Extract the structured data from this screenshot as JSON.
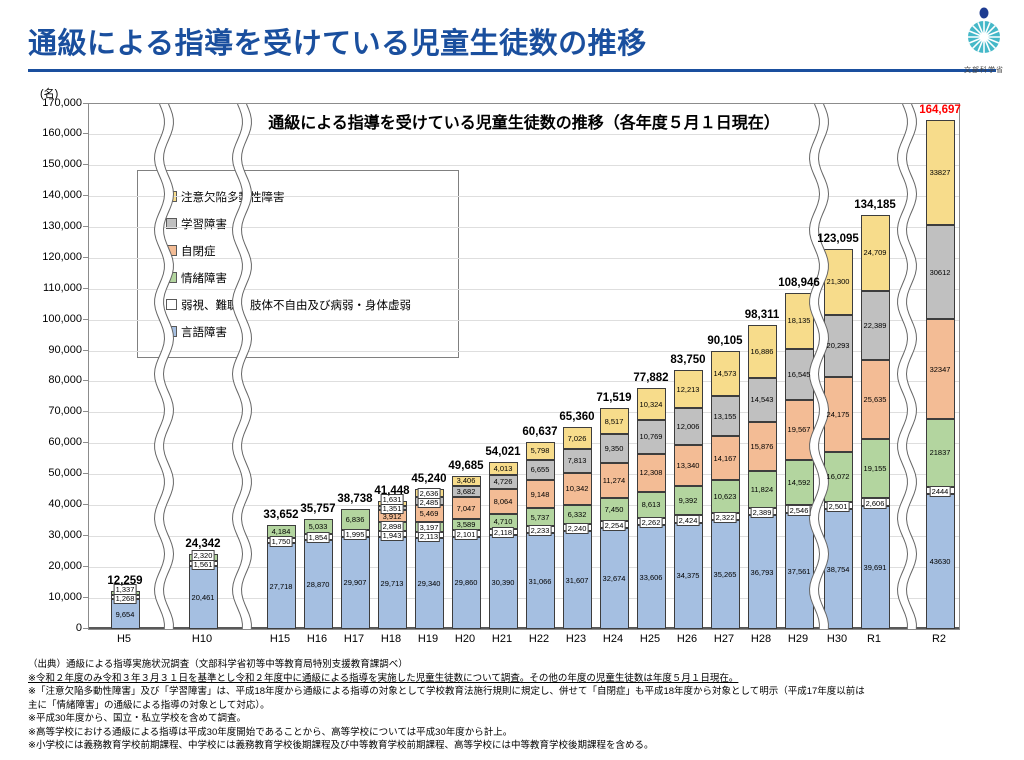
{
  "page": {
    "title": "通級による指導を受けている児童生徒数の推移",
    "logo_caption": "文部科学省",
    "logo_colors": {
      "circle": "#45B8C8",
      "dot": "#1E3C91"
    },
    "accent_color": "#1A4F9E"
  },
  "footnotes": [
    "（出典）通級による指導実施状況調査（文部科学省初等中等教育局特別支援教育課調べ）",
    "※令和２年度のみ令和３年３月３１日を基準とし令和２年度中に通級による指導を実施した児童生徒数について調査。その他の年度の児童生徒数は年度５月１日現在。",
    "※「注意欠陥多動性障害」及び「学習障害」は、平成18年度から通級による指導の対象として学校教育法施行規則に規定し、併せて「自閉症」も平成18年度から対象として明示（平成17年度以前は",
    "主に「情緒障害」の通級による指導の対象として対応）。",
    "※平成30年度から、国立・私立学校を含めて調査。",
    "※高等学校における通級による指導は平成30年度開始であることから、高等学校については平成30年度から計上。",
    "※小学校には義務教育学校前期課程、中学校には義務教育学校後期課程及び中等教育学校前期課程、高等学校には中等教育学校後期課程を含める。"
  ],
  "chart_data": {
    "type": "bar",
    "stacked": true,
    "title": "通級による指導を受けている児童生徒数の推移（各年度５月１日現在）",
    "unit_label": "(名)",
    "ylim": [
      0,
      170000
    ],
    "ytick_step": 10000,
    "grid": true,
    "legend_position": "inside-upper-left",
    "axis_breaks_after": [
      "H5",
      "H10",
      "H29",
      "R1"
    ],
    "categories": [
      "H5",
      "H10",
      "H15",
      "H16",
      "H17",
      "H18",
      "H19",
      "H20",
      "H21",
      "H22",
      "H23",
      "H24",
      "H25",
      "H26",
      "H27",
      "H28",
      "H29",
      "H30",
      "R1",
      "R2"
    ],
    "series": [
      {
        "name": "言語障害",
        "color": "#A5BFE1",
        "values": [
          9654,
          20461,
          27718,
          28870,
          29907,
          29713,
          29340,
          29860,
          30390,
          31066,
          31607,
          32674,
          33606,
          34375,
          35265,
          36793,
          37561,
          38754,
          39691,
          43630
        ],
        "labels": [
          "9,654",
          "20,461",
          "27,718",
          "28,870",
          "29,907",
          "29,713",
          "29,340",
          "29,860",
          "30,390",
          "31,066",
          "31,607",
          "32,674",
          "33,606",
          "34,375",
          "35,265",
          "36,793",
          "37,561",
          "38,754",
          "39,691",
          "43630"
        ]
      },
      {
        "name": "弱視、難聴、肢体不自由及び病弱・身体虚弱",
        "color": "#FFFFFF",
        "values": [
          1268,
          1561,
          1750,
          1854,
          1995,
          1943,
          2113,
          2101,
          2118,
          2233,
          2240,
          2254,
          2262,
          2424,
          2322,
          2389,
          2546,
          2501,
          2606,
          2444
        ],
        "labels": [
          "1,268",
          "1,561",
          "1,750",
          "1,854",
          "1,995",
          "1,943",
          "2,113",
          "2,101",
          "2,118",
          "2,233",
          "2,240",
          "2,254",
          "2,262",
          "2,424",
          "2,322",
          "2,389",
          "2,546",
          "2,501",
          "2,606",
          "2444"
        ]
      },
      {
        "name": "情緒障害",
        "color": "#B3D59F",
        "values": [
          1337,
          2320,
          4184,
          5033,
          6836,
          2898,
          3197,
          3589,
          4710,
          5737,
          6332,
          7450,
          8613,
          9392,
          10623,
          11824,
          14592,
          16072,
          19155,
          21837
        ],
        "labels": [
          "1,337",
          "2,320",
          "4,184",
          "5,033",
          "6,836",
          "2,898",
          "3,197",
          "3,589",
          "4,710",
          "5,737",
          "6,332",
          "7,450",
          "8,613",
          "9,392",
          "10,623",
          "11,824",
          "14,592",
          "16,072",
          "19,155",
          "21837"
        ]
      },
      {
        "name": "自閉症",
        "color": "#F3BC95",
        "values": [
          0,
          0,
          0,
          0,
          0,
          3912,
          5469,
          7047,
          8064,
          9148,
          10342,
          11274,
          12308,
          13340,
          14167,
          15876,
          19567,
          24175,
          25635,
          32347
        ],
        "labels": [
          "",
          "",
          "",
          "",
          "",
          "3,912",
          "5,469",
          "7,047",
          "8,064",
          "9,148",
          "10,342",
          "11,274",
          "12,308",
          "13,340",
          "14,167",
          "15,876",
          "19,567",
          "24,175",
          "25,635",
          "32347"
        ]
      },
      {
        "name": "学習障害",
        "color": "#C0C0C0",
        "values": [
          0,
          0,
          0,
          0,
          0,
          1351,
          2485,
          3682,
          4726,
          6655,
          7813,
          9350,
          10769,
          12006,
          13155,
          14543,
          16545,
          20293,
          22389,
          30612
        ],
        "labels": [
          "",
          "",
          "",
          "",
          "",
          "1,351",
          "2,485",
          "3,682",
          "4,726",
          "6,655",
          "7,813",
          "9,350",
          "10,769",
          "12,006",
          "13,155",
          "14,543",
          "16,545",
          "20,293",
          "22,389",
          "30612"
        ]
      },
      {
        "name": "注意欠陥多動性障害",
        "color": "#F7DC8B",
        "values": [
          0,
          0,
          0,
          0,
          0,
          1631,
          2636,
          3406,
          4013,
          5798,
          7026,
          8517,
          10324,
          12213,
          14573,
          16886,
          18135,
          21300,
          24709,
          33827
        ],
        "labels": [
          "",
          "",
          "",
          "",
          "",
          "1,631",
          "2,636",
          "3,406",
          "4,013",
          "5,798",
          "7,026",
          "8,517",
          "10,324",
          "12,213",
          "14,573",
          "16,886",
          "18,135",
          "21,300",
          "24,709",
          "33827"
        ]
      }
    ],
    "totals": {
      "values": [
        12259,
        24342,
        33652,
        35757,
        38738,
        41448,
        45240,
        49685,
        54021,
        60637,
        65360,
        71519,
        77882,
        83750,
        90105,
        98311,
        108946,
        123095,
        134185,
        164697
      ],
      "labels": [
        "12,259",
        "24,342",
        "33,652",
        "35,757",
        "38,738",
        "41,448",
        "45,240",
        "49,685",
        "54,021",
        "60,637",
        "65,360",
        "71,519",
        "77,882",
        "83,750",
        "90,105",
        "98,311",
        "108,946",
        "123,095",
        "134,185",
        "164,697"
      ],
      "highlight_index": 19,
      "highlight_color": "#FF0000"
    }
  }
}
